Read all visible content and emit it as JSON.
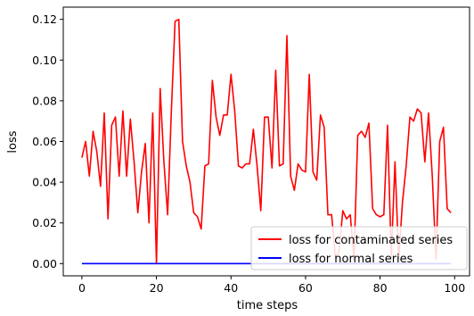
{
  "chart_data": {
    "type": "line",
    "title": "",
    "xlabel": "time steps",
    "ylabel": "loss",
    "xlim": [
      -5,
      104
    ],
    "ylim": [
      -0.006,
      0.126
    ],
    "xticks": [
      0,
      20,
      40,
      60,
      80,
      100
    ],
    "yticks": [
      0.0,
      0.02,
      0.04,
      0.06,
      0.08,
      0.1,
      0.12
    ],
    "ytick_labels": [
      "0.00",
      "0.02",
      "0.04",
      "0.06",
      "0.08",
      "0.10",
      "0.12"
    ],
    "grid": false,
    "legend_position": "lower-right",
    "series": [
      {
        "name": "loss for contaminated series",
        "color": "#ff0000",
        "x": [
          0,
          1,
          2,
          3,
          4,
          5,
          6,
          7,
          8,
          9,
          10,
          11,
          12,
          13,
          14,
          15,
          16,
          17,
          18,
          19,
          20,
          21,
          22,
          23,
          24,
          25,
          26,
          27,
          28,
          29,
          30,
          31,
          32,
          33,
          34,
          35,
          36,
          37,
          38,
          39,
          40,
          41,
          42,
          43,
          44,
          45,
          46,
          47,
          48,
          49,
          50,
          51,
          52,
          53,
          54,
          55,
          56,
          57,
          58,
          59,
          60,
          61,
          62,
          63,
          64,
          65,
          66,
          67,
          68,
          69,
          70,
          71,
          72,
          73,
          74,
          75,
          76,
          77,
          78,
          79,
          80,
          81,
          82,
          83,
          84,
          85,
          86,
          87,
          88,
          89,
          90,
          91,
          92,
          93,
          94,
          95,
          96,
          97,
          98,
          99
        ],
        "values": [
          0.052,
          0.06,
          0.043,
          0.065,
          0.055,
          0.038,
          0.074,
          0.022,
          0.068,
          0.072,
          0.043,
          0.075,
          0.043,
          0.071,
          0.05,
          0.025,
          0.045,
          0.059,
          0.02,
          0.074,
          0.0,
          0.086,
          0.05,
          0.024,
          0.075,
          0.119,
          0.12,
          0.06,
          0.048,
          0.04,
          0.025,
          0.023,
          0.017,
          0.048,
          0.049,
          0.09,
          0.072,
          0.063,
          0.073,
          0.073,
          0.093,
          0.075,
          0.048,
          0.047,
          0.049,
          0.049,
          0.066,
          0.048,
          0.026,
          0.072,
          0.072,
          0.047,
          0.095,
          0.048,
          0.049,
          0.112,
          0.043,
          0.036,
          0.049,
          0.046,
          0.045,
          0.093,
          0.045,
          0.041,
          0.073,
          0.067,
          0.024,
          0.024,
          0.003,
          0.006,
          0.026,
          0.022,
          0.024,
          0.002,
          0.063,
          0.065,
          0.062,
          0.069,
          0.027,
          0.024,
          0.023,
          0.024,
          0.068,
          0.003,
          0.05,
          0.002,
          0.03,
          0.048,
          0.072,
          0.07,
          0.076,
          0.074,
          0.05,
          0.074,
          0.043,
          0.002,
          0.06,
          0.067,
          0.027,
          0.025
        ]
      },
      {
        "name": "loss for normal series",
        "color": "#0000ff",
        "x": [
          0,
          99
        ],
        "values": [
          0.0,
          0.0
        ]
      }
    ]
  }
}
